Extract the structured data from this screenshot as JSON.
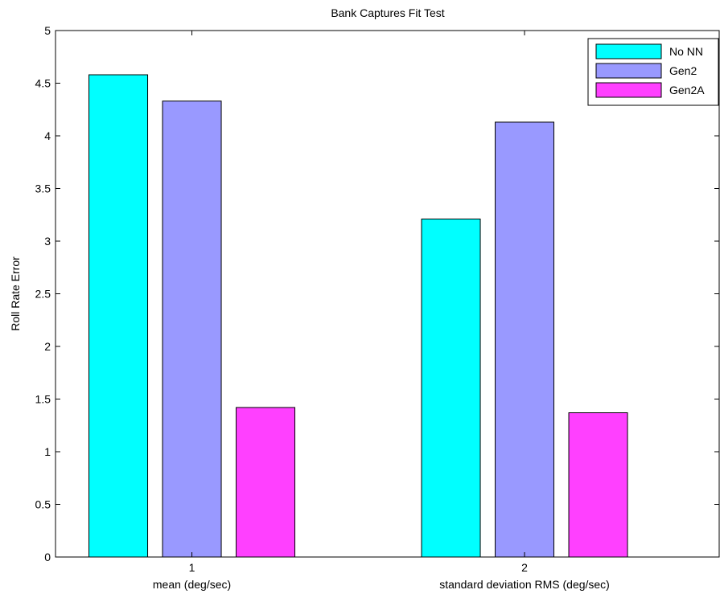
{
  "chart_data": {
    "type": "bar",
    "title": "Bank Captures Fit Test",
    "ylabel": "Roll Rate Error",
    "xlabel": "",
    "categories": [
      "1",
      "2"
    ],
    "category_sublabels": [
      "mean (deg/sec)",
      "standard deviation RMS (deg/sec)"
    ],
    "ylim": [
      0,
      5
    ],
    "yticks": [
      "0",
      "0.5",
      "1",
      "1.5",
      "2",
      "2.5",
      "3",
      "3.5",
      "4",
      "4.5",
      "5"
    ],
    "grid": false,
    "legend_position": "top-right",
    "series": [
      {
        "name": "No NN",
        "color": "#00ffff",
        "values": [
          4.58,
          3.21
        ]
      },
      {
        "name": "Gen2",
        "color": "#9999ff",
        "values": [
          4.33,
          4.13
        ]
      },
      {
        "name": "Gen2A",
        "color": "#ff40ff",
        "values": [
          1.42,
          1.37
        ]
      }
    ]
  }
}
